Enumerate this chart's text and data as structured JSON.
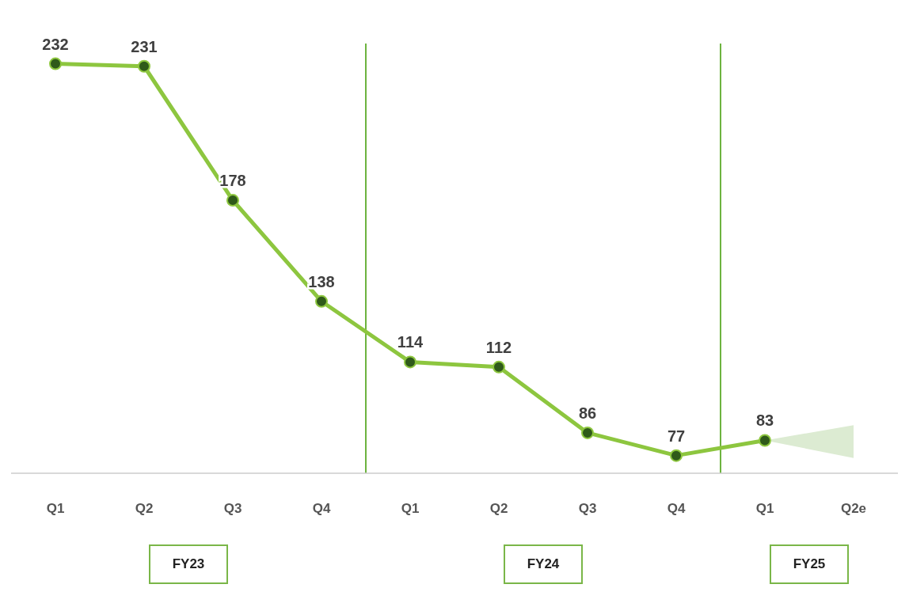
{
  "chart_data": {
    "type": "line",
    "categories": [
      "Q1",
      "Q2",
      "Q3",
      "Q4",
      "Q1",
      "Q2",
      "Q3",
      "Q4",
      "Q1",
      "Q2e"
    ],
    "series": [
      {
        "color": "#8dc63f",
        "values": [
          232,
          231,
          178,
          138,
          114,
          112,
          86,
          77,
          83,
          null
        ],
        "lower": [
          null,
          null,
          null,
          null,
          null,
          null,
          null,
          null,
          83,
          76
        ],
        "upper": [
          null,
          null,
          null,
          null,
          null,
          null,
          null,
          null,
          83,
          89
        ]
      }
    ],
    "ylim": [
      70,
      240
    ],
    "tick_labels": "x",
    "data_labels": true,
    "marker": "circle",
    "annotations": [
      "FY23",
      "FY24",
      "FY25"
    ]
  }
}
